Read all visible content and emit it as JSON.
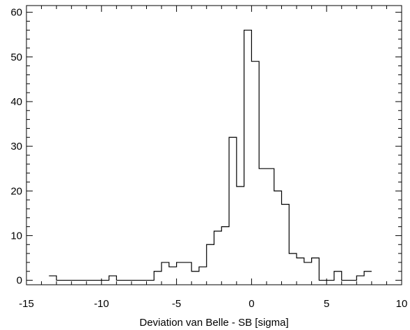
{
  "chart_data": {
    "type": "histogram",
    "title": "",
    "xlabel": "Deviation van Belle - SB [sigma]",
    "ylabel": "",
    "xlim": [
      -15,
      10
    ],
    "ylim": [
      -1,
      61.5
    ],
    "grid": false,
    "x_ticks": [
      -15,
      -10,
      -5,
      0,
      5,
      10
    ],
    "x_tick_labels": [
      "-15",
      "-10",
      "-5",
      "0",
      "5",
      "10"
    ],
    "y_ticks": [
      0,
      10,
      20,
      30,
      40,
      50,
      60
    ],
    "y_tick_labels": [
      "0",
      "10",
      "20",
      "30",
      "40",
      "50",
      "60"
    ],
    "bin_width": 0.5,
    "bin_edges_start": -13.5,
    "values": [
      1,
      0,
      0,
      0,
      0,
      0,
      0,
      0,
      1,
      0,
      0,
      0,
      0,
      0,
      2,
      4,
      3,
      4,
      4,
      2,
      3,
      8,
      11,
      12,
      32,
      21,
      56,
      49,
      25,
      25,
      20,
      17,
      6,
      5,
      4,
      5,
      0,
      0,
      2,
      0,
      0,
      1,
      2
    ],
    "stroke_color": "#000000",
    "background_color": "#ffffff"
  }
}
